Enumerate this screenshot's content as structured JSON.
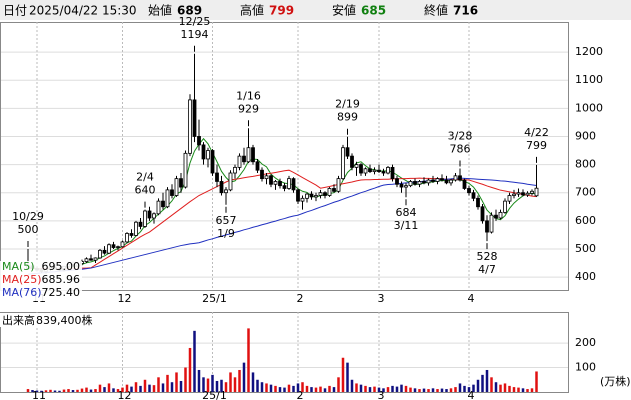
{
  "header": {
    "date_label": "日付",
    "date": "2025/04/22 15:30",
    "open_label": "始値",
    "open": 689,
    "high_label": "高値",
    "high": 799,
    "low_label": "安値",
    "low": 685,
    "close_label": "終値",
    "close": 716
  },
  "chart_data": {
    "type": "candlestick",
    "categories": [
      null,
      null,
      "11",
      null,
      null,
      null,
      null,
      null,
      null,
      null,
      null,
      null,
      null,
      null,
      null,
      null,
      null,
      null,
      null,
      null,
      null,
      "12",
      null,
      null,
      null,
      null,
      null,
      null,
      null,
      null,
      null,
      null,
      null,
      null,
      null,
      null,
      null,
      null,
      null,
      null,
      null,
      "25/1",
      null,
      null,
      null,
      null,
      null,
      null,
      null,
      null,
      null,
      null,
      null,
      null,
      null,
      null,
      null,
      null,
      null,
      null,
      "2",
      null,
      null,
      null,
      null,
      null,
      null,
      null,
      null,
      null,
      null,
      null,
      null,
      null,
      null,
      null,
      null,
      null,
      "3",
      null,
      null,
      null,
      null,
      null,
      null,
      null,
      null,
      null,
      null,
      null,
      null,
      null,
      null,
      null,
      null,
      null,
      null,
      null,
      "4",
      null,
      null,
      null,
      null,
      null,
      null,
      null,
      null,
      null,
      null,
      null,
      null,
      null,
      null,
      null
    ],
    "ohlc": [
      [
        430,
        500,
        425,
        440
      ],
      [
        440,
        445,
        425,
        430
      ],
      [
        430,
        438,
        420,
        425
      ],
      [
        425,
        432,
        415,
        420
      ],
      [
        420,
        430,
        412,
        428
      ],
      [
        428,
        440,
        422,
        435
      ],
      [
        435,
        445,
        428,
        430
      ],
      [
        430,
        436,
        420,
        425
      ],
      [
        425,
        440,
        420,
        438
      ],
      [
        438,
        450,
        432,
        445
      ],
      [
        445,
        455,
        438,
        440
      ],
      [
        440,
        452,
        435,
        448
      ],
      [
        448,
        462,
        442,
        455
      ],
      [
        455,
        470,
        450,
        465
      ],
      [
        465,
        480,
        458,
        460
      ],
      [
        460,
        470,
        450,
        468
      ],
      [
        468,
        500,
        465,
        495
      ],
      [
        495,
        510,
        480,
        485
      ],
      [
        485,
        520,
        482,
        515
      ],
      [
        515,
        525,
        500,
        505
      ],
      [
        505,
        512,
        495,
        508
      ],
      [
        508,
        530,
        505,
        525
      ],
      [
        525,
        560,
        520,
        555
      ],
      [
        555,
        570,
        540,
        548
      ],
      [
        548,
        600,
        545,
        595
      ],
      [
        595,
        610,
        570,
        580
      ],
      [
        580,
        640,
        575,
        635
      ],
      [
        635,
        650,
        600,
        610
      ],
      [
        610,
        630,
        590,
        625
      ],
      [
        625,
        680,
        620,
        670
      ],
      [
        670,
        700,
        640,
        650
      ],
      [
        650,
        720,
        645,
        710
      ],
      [
        710,
        730,
        680,
        690
      ],
      [
        690,
        760,
        685,
        750
      ],
      [
        750,
        770,
        700,
        720
      ],
      [
        720,
        850,
        715,
        840
      ],
      [
        840,
        1050,
        830,
        1030
      ],
      [
        1030,
        1194,
        880,
        900
      ],
      [
        900,
        960,
        850,
        870
      ],
      [
        870,
        880,
        800,
        820
      ],
      [
        820,
        860,
        790,
        850
      ],
      [
        850,
        855,
        760,
        770
      ],
      [
        770,
        800,
        720,
        740
      ],
      [
        740,
        760,
        690,
        700
      ],
      [
        700,
        720,
        657,
        710
      ],
      [
        710,
        780,
        705,
        770
      ],
      [
        770,
        800,
        750,
        790
      ],
      [
        790,
        840,
        780,
        830
      ],
      [
        830,
        860,
        800,
        810
      ],
      [
        810,
        929,
        805,
        860
      ],
      [
        860,
        870,
        800,
        810
      ],
      [
        810,
        820,
        770,
        780
      ],
      [
        780,
        790,
        740,
        750
      ],
      [
        750,
        770,
        730,
        760
      ],
      [
        760,
        765,
        720,
        730
      ],
      [
        730,
        745,
        710,
        740
      ],
      [
        740,
        750,
        715,
        725
      ],
      [
        725,
        735,
        705,
        715
      ],
      [
        715,
        760,
        710,
        750
      ],
      [
        750,
        755,
        700,
        710
      ],
      [
        710,
        715,
        660,
        670
      ],
      [
        670,
        690,
        640,
        680
      ],
      [
        680,
        700,
        665,
        695
      ],
      [
        695,
        705,
        675,
        685
      ],
      [
        685,
        700,
        670,
        690
      ],
      [
        690,
        710,
        680,
        700
      ],
      [
        700,
        705,
        680,
        690
      ],
      [
        690,
        720,
        685,
        715
      ],
      [
        715,
        730,
        700,
        705
      ],
      [
        705,
        760,
        700,
        750
      ],
      [
        750,
        870,
        745,
        860
      ],
      [
        860,
        899,
        820,
        830
      ],
      [
        830,
        840,
        780,
        790
      ],
      [
        790,
        810,
        760,
        800
      ],
      [
        800,
        805,
        760,
        770
      ],
      [
        770,
        790,
        760,
        785
      ],
      [
        785,
        800,
        770,
        775
      ],
      [
        775,
        790,
        765,
        780
      ],
      [
        780,
        800,
        770,
        775
      ],
      [
        775,
        785,
        760,
        770
      ],
      [
        770,
        795,
        765,
        790
      ],
      [
        790,
        800,
        740,
        750
      ],
      [
        750,
        760,
        720,
        730
      ],
      [
        730,
        740,
        700,
        720
      ],
      [
        720,
        735,
        684,
        725
      ],
      [
        725,
        745,
        720,
        740
      ],
      [
        740,
        750,
        725,
        730
      ],
      [
        730,
        745,
        720,
        740
      ],
      [
        740,
        755,
        730,
        735
      ],
      [
        735,
        750,
        725,
        745
      ],
      [
        745,
        760,
        735,
        740
      ],
      [
        740,
        755,
        730,
        750
      ],
      [
        750,
        765,
        740,
        745
      ],
      [
        745,
        760,
        730,
        735
      ],
      [
        735,
        750,
        725,
        745
      ],
      [
        745,
        770,
        740,
        760
      ],
      [
        760,
        786,
        740,
        745
      ],
      [
        745,
        750,
        710,
        715
      ],
      [
        715,
        725,
        690,
        700
      ],
      [
        700,
        710,
        670,
        680
      ],
      [
        680,
        690,
        640,
        650
      ],
      [
        650,
        660,
        590,
        600
      ],
      [
        600,
        620,
        528,
        560
      ],
      [
        560,
        630,
        555,
        620
      ],
      [
        620,
        640,
        600,
        610
      ],
      [
        610,
        640,
        605,
        630
      ],
      [
        630,
        680,
        625,
        670
      ],
      [
        670,
        700,
        660,
        690
      ],
      [
        690,
        710,
        680,
        695
      ],
      [
        695,
        715,
        685,
        700
      ],
      [
        700,
        712,
        688,
        692
      ],
      [
        692,
        705,
        685,
        698
      ],
      [
        698,
        712,
        690,
        705
      ],
      [
        689,
        799,
        685,
        716
      ]
    ],
    "series": [
      {
        "name": "MA(5)",
        "value_label": "695.00",
        "color": "#1a8a1a",
        "values": [
          435,
          433,
          430,
          428,
          429,
          428,
          428,
          428,
          431,
          435,
          436,
          439,
          445,
          451,
          454,
          459,
          469,
          475,
          485,
          494,
          502,
          508,
          522,
          528,
          546,
          561,
          583,
          594,
          609,
          624,
          638,
          653,
          671,
          695,
          704,
          742,
          806,
          848,
          872,
          892,
          874,
          842,
          810,
          776,
          754,
          738,
          742,
          760,
          782,
          812,
          820,
          818,
          802,
          792,
          766,
          752,
          741,
          734,
          732,
          728,
          714,
          705,
          701,
          688,
          684,
          690,
          692,
          697,
          700,
          712,
          744,
          772,
          787,
          806,
          810,
          796,
          784,
          782,
          777,
          777,
          778,
          773,
          763,
          752,
          743,
          733,
          729,
          731,
          734,
          738,
          738,
          742,
          743,
          743,
          743,
          747,
          746,
          740,
          733,
          720,
          698,
          669,
          638,
          622,
          608,
          604,
          618,
          644,
          663,
          677,
          689,
          695,
          698,
          695
        ]
      },
      {
        "name": "MA(25)",
        "value_label": "685.96",
        "color": "#e02020",
        "values": [
          430,
          430,
          430,
          430,
          430,
          430,
          430,
          430,
          431,
          431,
          431,
          432,
          432,
          432,
          433,
          443,
          453,
          463,
          473,
          483,
          493,
          503,
          513,
          523,
          533,
          543,
          552,
          560,
          572,
          584,
          596,
          608,
          620,
          632,
          644,
          656,
          668,
          679,
          690,
          698,
          706,
          714,
          722,
          730,
          738,
          745,
          748,
          750,
          753,
          756,
          758,
          761,
          764,
          767,
          769,
          772,
          775,
          778,
          780,
          772,
          763,
          754,
          745,
          736,
          727,
          716,
          719,
          722,
          726,
          729,
          732,
          735,
          738,
          742,
          745,
          746,
          746,
          747,
          747,
          748,
          748,
          749,
          749,
          750,
          750,
          751,
          751,
          752,
          751,
          751,
          750,
          750,
          749,
          748,
          748,
          747,
          746,
          746,
          745,
          740,
          735,
          730,
          724,
          719,
          714,
          709,
          706,
          703,
          700,
          697,
          694,
          691,
          688,
          685.96
        ]
      },
      {
        "name": "MA(76)",
        "value_label": "725.40",
        "color": "#2030c0",
        "values": [
          410,
          412,
          413,
          415,
          416,
          418,
          419,
          421,
          422,
          424,
          425,
          427,
          428,
          430,
          432,
          436,
          440,
          444,
          448,
          452,
          456,
          460,
          464,
          468,
          472,
          476,
          480,
          484,
          488,
          492,
          496,
          500,
          504,
          508,
          512,
          515,
          518,
          520,
          522,
          527,
          532,
          536,
          541,
          545,
          550,
          554,
          559,
          563,
          568,
          572,
          577,
          581,
          586,
          590,
          595,
          599,
          604,
          608,
          613,
          617,
          620,
          626,
          632,
          637,
          643,
          649,
          654,
          660,
          666,
          671,
          677,
          683,
          688,
          694,
          700,
          705,
          711,
          716,
          722,
          727,
          729,
          730,
          732,
          733,
          735,
          736,
          738,
          739,
          741,
          742,
          744,
          745,
          747,
          748,
          749,
          751,
          752,
          751,
          750,
          749,
          748,
          747,
          746,
          745,
          744,
          742,
          741,
          739,
          737,
          735,
          733,
          730,
          728,
          725.4
        ]
      }
    ],
    "annotations": [
      {
        "date": "10/29",
        "value": 500
      },
      {
        "date": "12/25",
        "value": 1194
      },
      {
        "date": "1/9",
        "value": 657
      },
      {
        "date": "1/16",
        "value": 929
      },
      {
        "date": "2/4",
        "value": 640
      },
      {
        "date": "2/19",
        "value": 899
      },
      {
        "date": "3/11",
        "value": 684
      },
      {
        "date": "3/28",
        "value": 786
      },
      {
        "date": "4/7",
        "value": 528
      },
      {
        "date": "4/22",
        "value": 799
      }
    ],
    "ylim": [
      354,
      1307
    ],
    "yticks": [
      400,
      500,
      600,
      700,
      800,
      900,
      1000,
      1100,
      1200
    ],
    "grid": true,
    "up_color": "#ffffff",
    "down_color": "#000000",
    "volume": {
      "label": "出来高",
      "latest": "839,400株",
      "unit": "(万株)",
      "up_color": "#e01010",
      "down_color": "#101080",
      "ylim": [
        0,
        327
      ],
      "yticks": [
        100,
        200
      ],
      "values": [
        12,
        8,
        6,
        5,
        7,
        9,
        6,
        5,
        10,
        12,
        8,
        9,
        14,
        18,
        10,
        12,
        30,
        20,
        35,
        15,
        12,
        18,
        30,
        22,
        40,
        25,
        50,
        30,
        28,
        60,
        35,
        70,
        40,
        80,
        45,
        100,
        180,
        250,
        90,
        60,
        55,
        70,
        45,
        50,
        40,
        80,
        60,
        90,
        120,
        260,
        80,
        50,
        40,
        35,
        30,
        25,
        20,
        18,
        30,
        25,
        35,
        40,
        25,
        20,
        18,
        22,
        15,
        25,
        20,
        60,
        140,
        120,
        50,
        35,
        30,
        25,
        20,
        22,
        18,
        15,
        20,
        25,
        22,
        30,
        25,
        18,
        15,
        12,
        14,
        12,
        15,
        12,
        14,
        12,
        15,
        20,
        35,
        25,
        20,
        30,
        50,
        70,
        90,
        60,
        40,
        30,
        35,
        25,
        20,
        18,
        15,
        12,
        15,
        83.94
      ]
    }
  }
}
